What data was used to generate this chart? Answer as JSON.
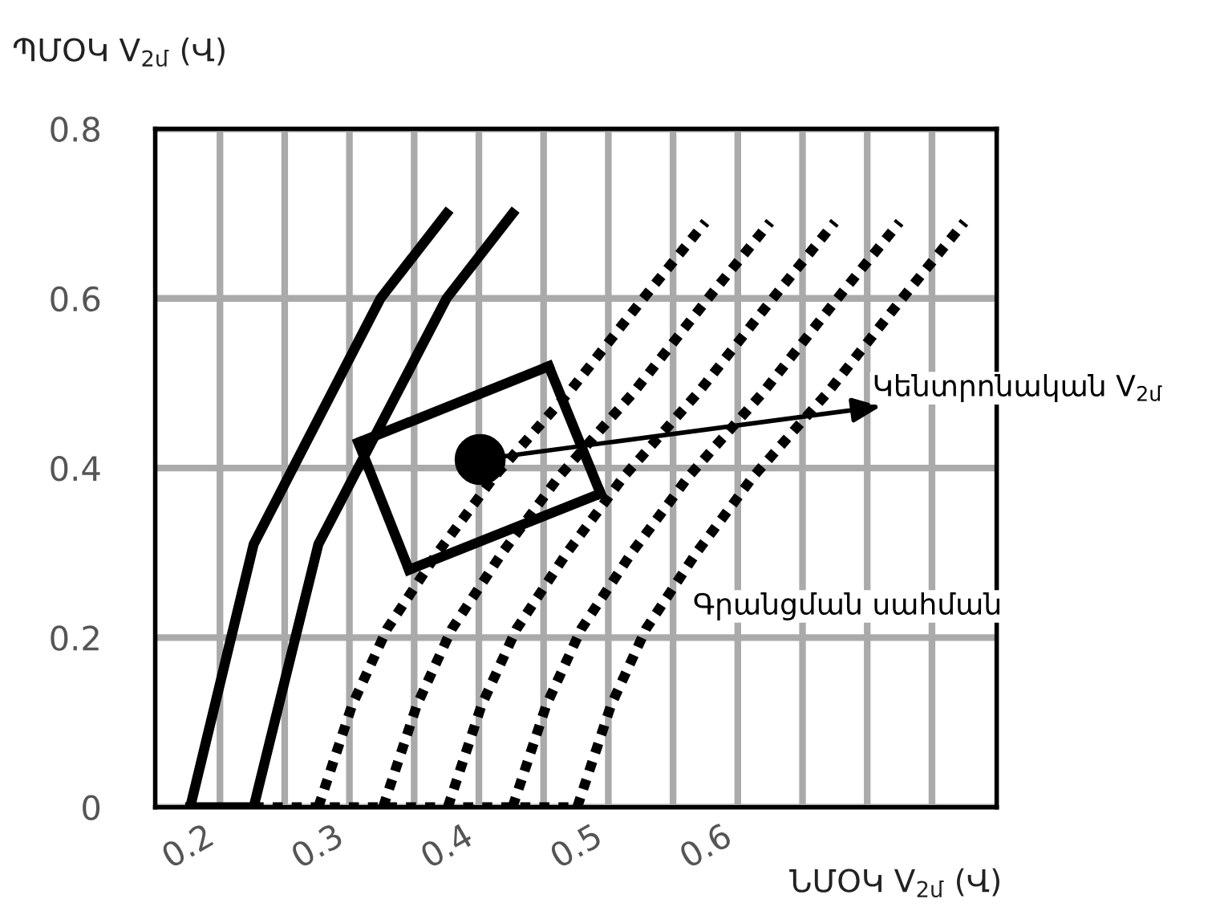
{
  "chart_data": {
    "type": "line",
    "xlabel": "ՆՄՕԿ V$_{2մ}$ (Վ)",
    "ylabel": "ՊՄՕԿ V$_{2մ}$ (Վ)",
    "xlim": [
      0.15,
      0.8
    ],
    "ylim": [
      0,
      0.8
    ],
    "xticks": [
      0.2,
      {
        "value": 0.25,
        "label": null
      },
      0.3,
      {
        "value": 0.35,
        "label": null
      },
      0.4,
      {
        "value": 0.45,
        "label": null
      },
      0.5,
      {
        "value": 0.55,
        "label": null
      },
      0.6,
      {
        "value": 0.65,
        "label": null
      },
      {
        "value": 0.7,
        "label": null
      },
      {
        "value": 0.75,
        "label": null
      }
    ],
    "yticks": [
      0,
      0.2,
      0.4,
      0.6,
      0.8
    ],
    "grid": true,
    "series": [
      {
        "color": "#000000",
        "line_style": "solid",
        "x": [
          0.177,
          0.226
        ],
        "values": [
          0,
          0
        ]
      },
      {
        "color": "#000000",
        "line_style": "solid",
        "x": [
          0.177,
          0.226,
          0.324,
          0.375
        ],
        "values": [
          0,
          0.31,
          0.6,
          0.7
        ]
      },
      {
        "color": "#000000",
        "line_style": "solid",
        "x": [
          0.226,
          0.276,
          0.375,
          0.426
        ],
        "values": [
          0,
          0.31,
          0.6,
          0.7
        ]
      },
      {
        "color": "#000000",
        "line_style": "dotted",
        "x": [
          0.226,
          0.476
        ],
        "values": [
          0,
          0
        ]
      },
      {
        "color": "#000000",
        "line_style": "dotted",
        "x": [
          0.276,
          0.302,
          0.329,
          0.368,
          0.412,
          0.47,
          0.527,
          0.575
        ],
        "values": [
          0,
          0.12,
          0.21,
          0.3,
          0.39,
          0.49,
          0.6,
          0.69
        ]
      },
      {
        "color": "#000000",
        "line_style": "dotted",
        "x": [
          0.326,
          0.352,
          0.379,
          0.418,
          0.462,
          0.52,
          0.577,
          0.625
        ],
        "values": [
          0,
          0.12,
          0.21,
          0.3,
          0.39,
          0.49,
          0.6,
          0.69
        ]
      },
      {
        "color": "#000000",
        "line_style": "dotted",
        "x": [
          0.376,
          0.402,
          0.429,
          0.468,
          0.512,
          0.57,
          0.627,
          0.675
        ],
        "values": [
          0,
          0.12,
          0.21,
          0.3,
          0.39,
          0.49,
          0.6,
          0.69
        ]
      },
      {
        "color": "#000000",
        "line_style": "dotted",
        "x": [
          0.426,
          0.452,
          0.479,
          0.518,
          0.562,
          0.62,
          0.677,
          0.725
        ],
        "values": [
          0,
          0.12,
          0.21,
          0.3,
          0.39,
          0.49,
          0.6,
          0.69
        ]
      },
      {
        "color": "#000000",
        "line_style": "dotted",
        "x": [
          0.476,
          0.502,
          0.529,
          0.568,
          0.612,
          0.67,
          0.727,
          0.775
        ],
        "values": [
          0,
          0.12,
          0.21,
          0.3,
          0.39,
          0.49,
          0.6,
          0.69
        ]
      },
      {
        "color": "#000000",
        "line_style": "solid",
        "x": [
          0.307,
          0.454
        ],
        "values": [
          0.43,
          0.52
        ]
      },
      {
        "color": "#000000",
        "line_style": "solid",
        "x": [
          0.454,
          0.494
        ],
        "values": [
          0.52,
          0.37
        ]
      },
      {
        "color": "#000000",
        "line_style": "solid",
        "x": [
          0.346,
          0.494
        ],
        "values": [
          0.28,
          0.37
        ]
      },
      {
        "color": "#000000",
        "line_style": "solid",
        "x": [
          0.307,
          0.346
        ],
        "values": [
          0.43,
          0.28
        ]
      },
      {
        "type": "scatter",
        "marker": "circle",
        "color": "#000000",
        "x": [
          0.401
        ],
        "values": [
          0.41
        ]
      }
    ],
    "annotations": [
      {
        "text": "Կենտրոնական V$_{2մ}$",
        "x": 0.401,
        "y": 0.41
      },
      "Գրանցման սահման"
    ]
  }
}
